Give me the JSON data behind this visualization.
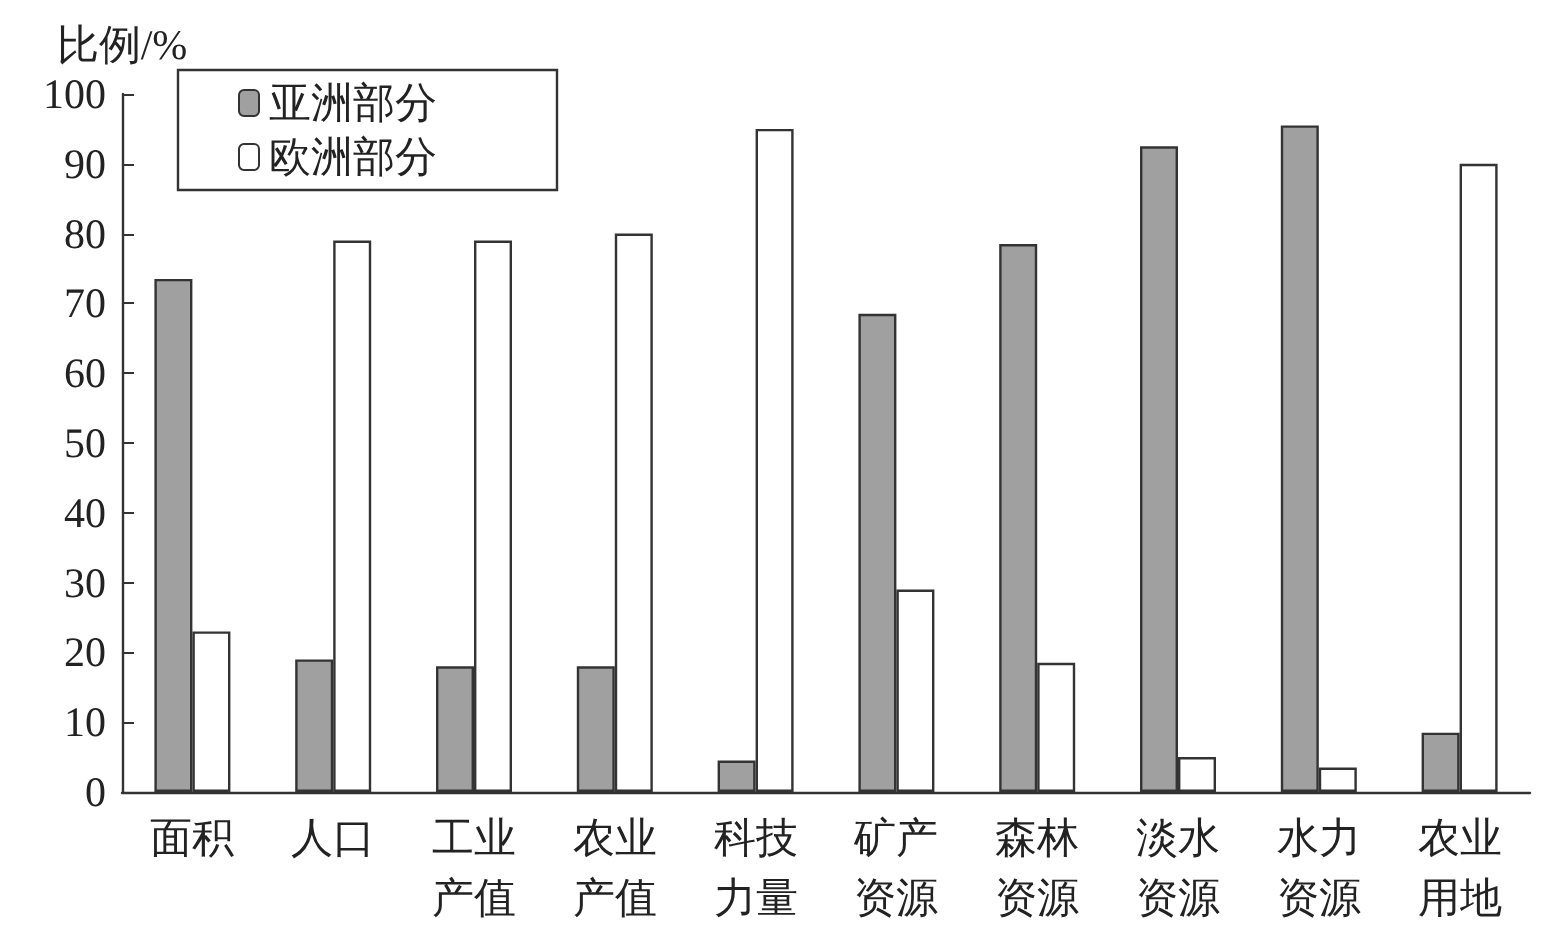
{
  "chart_data": {
    "type": "bar",
    "ylabel": "比例/%",
    "categories": [
      "面积",
      "人口",
      "工业产值",
      "农业产值",
      "科技力量",
      "矿产资源",
      "森林资源",
      "淡水资源",
      "水力资源",
      "农业用地"
    ],
    "series": [
      {
        "name": "亚洲部分",
        "color": "#a0a0a0",
        "values": [
          73.5,
          19,
          18,
          18,
          4.5,
          68.5,
          78.5,
          92.5,
          95.5,
          8.5
        ]
      },
      {
        "name": "欧洲部分",
        "color": "#ffffff",
        "values": [
          23,
          79,
          79,
          80,
          95,
          29,
          18.5,
          5,
          3.5,
          90
        ]
      }
    ],
    "ylim": [
      0,
      100
    ],
    "yticks": [
      0,
      10,
      20,
      30,
      40,
      50,
      60,
      70,
      80,
      90,
      100
    ],
    "grid": false,
    "legend": "top left"
  }
}
